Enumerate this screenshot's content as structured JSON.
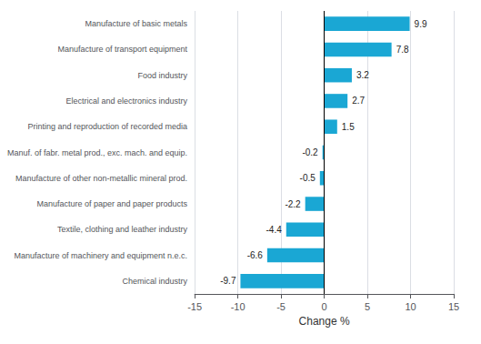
{
  "chart_data": {
    "type": "bar",
    "orientation": "horizontal",
    "categories": [
      "Chemical industry",
      "Manufacture of machinery and equipment n.e.c.",
      "Textile, clothing and leather industry",
      "Manufacture of paper and paper products",
      "Manufacture of other non-metallic mineral prod.",
      "Manuf. of fabr. metal prod., exc. mach. and equip.",
      "Printing and reproduction of recorded media",
      "Electrical and electronics industry",
      "Food industry",
      "Manufacture of transport equipment",
      "Manufacture of basic metals"
    ],
    "values": [
      -9.7,
      -6.6,
      -4.4,
      -2.2,
      -0.5,
      -0.2,
      1.5,
      2.7,
      3.2,
      7.8,
      9.9
    ],
    "color": "#1aa7d4",
    "xlabel": "Change %",
    "xlim": [
      -15,
      15
    ],
    "xticks": [
      -15,
      -10,
      -5,
      0,
      5,
      10,
      15
    ],
    "grid": true,
    "data_labels": true
  }
}
